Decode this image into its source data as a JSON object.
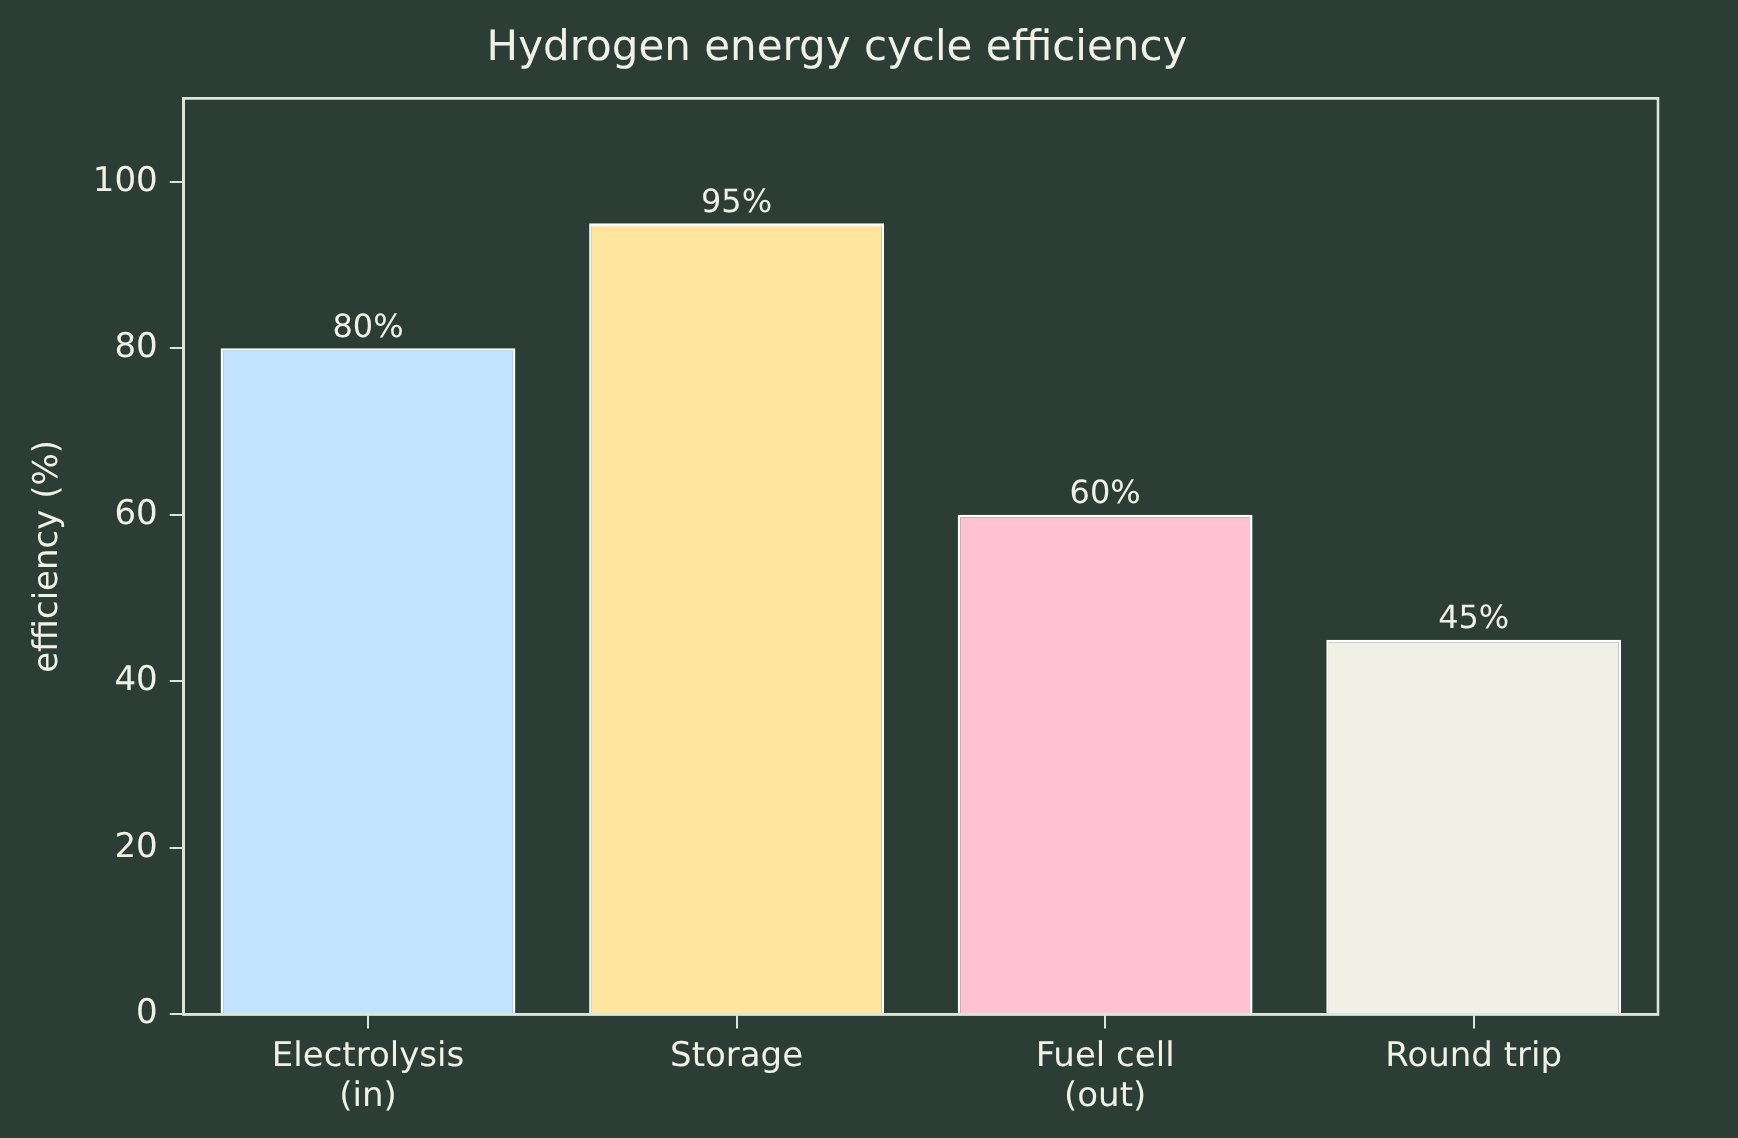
{
  "chart_data": {
    "type": "bar",
    "title": "Hydrogen energy cycle efficiency",
    "ylabel": "efficiency (%)",
    "categories": [
      "Electrolysis\n(in)",
      "Storage",
      "Fuel cell\n(out)",
      "Round trip"
    ],
    "values": [
      80,
      95,
      60,
      45
    ],
    "colors": [
      "#c2e3ff",
      "#ffe59e",
      "#ffc2d4",
      "#f0f0e6"
    ],
    "value_labels": [
      "80%",
      "95%",
      "60%",
      "45%"
    ],
    "ylim": [
      0,
      110
    ],
    "yticks": [
      0,
      20,
      40,
      60,
      80,
      100
    ],
    "grid": false,
    "legend": false
  }
}
